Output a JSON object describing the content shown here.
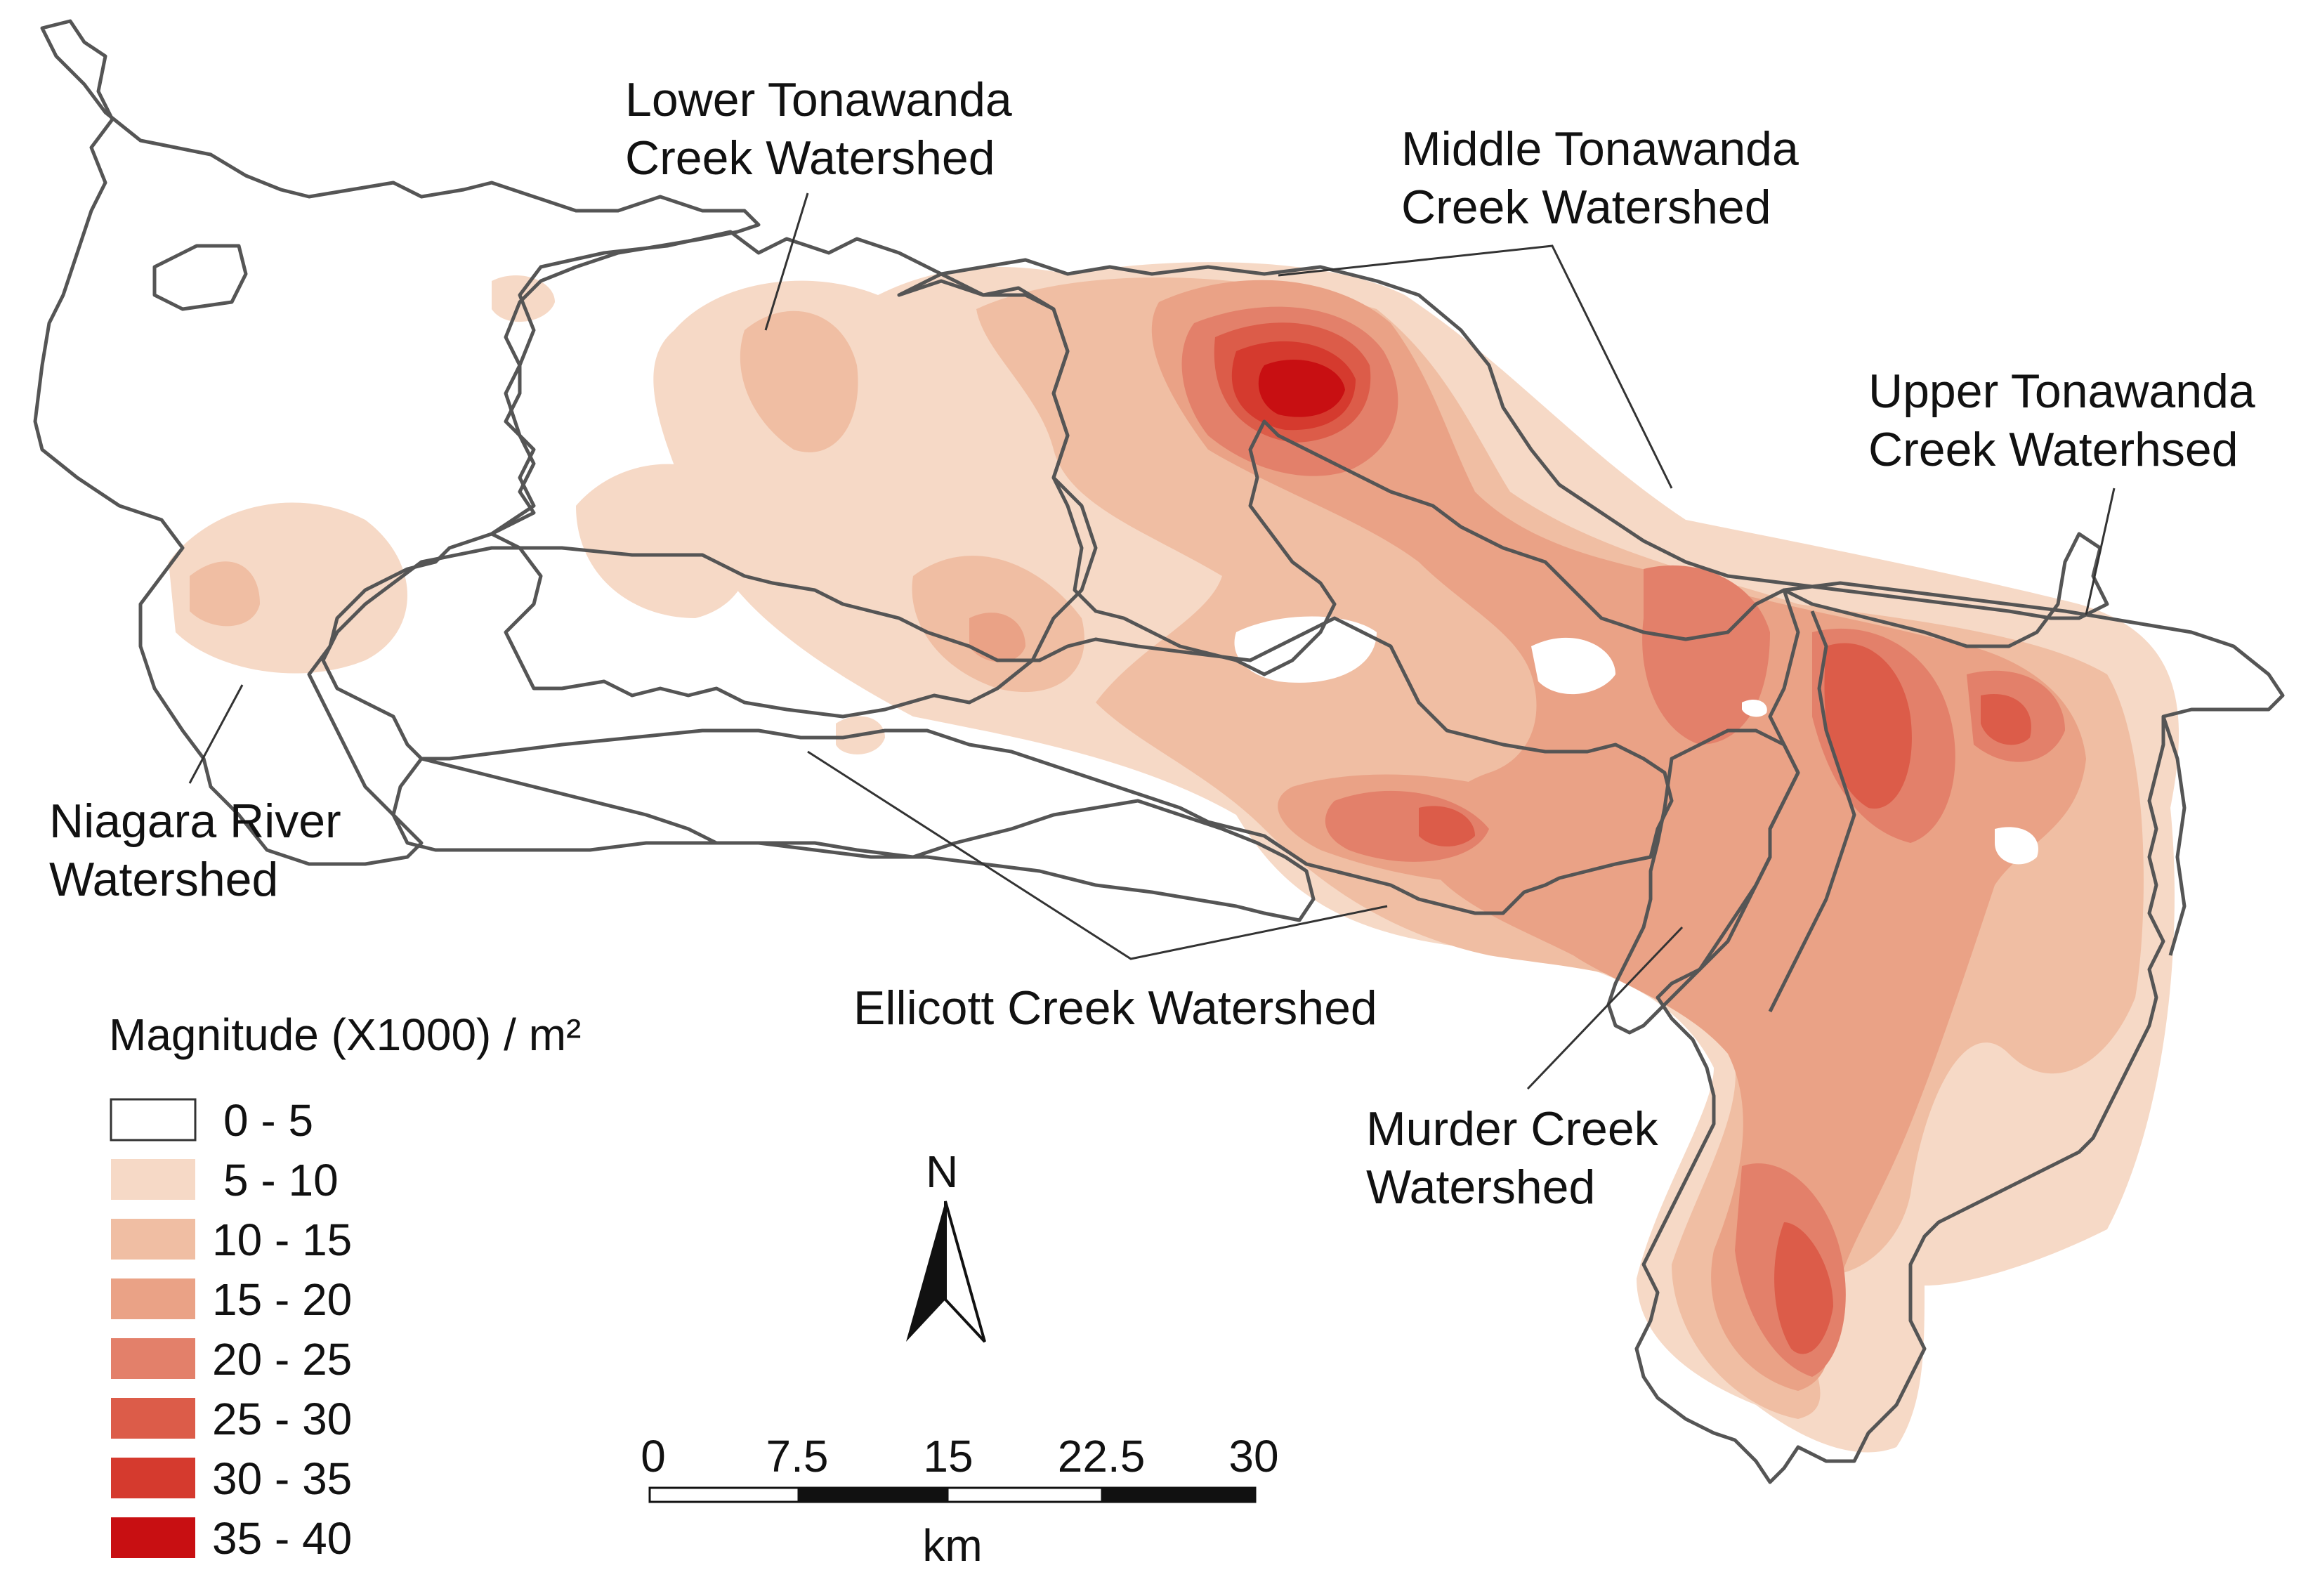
{
  "watersheds": [
    {
      "id": "lower-tonawanda",
      "line1": "Lower Tonawanda",
      "line2": "Creek Watershed"
    },
    {
      "id": "middle-tonawanda",
      "line1": "Middle Tonawanda",
      "line2": "Creek Watershed"
    },
    {
      "id": "upper-tonawanda",
      "line1": "Upper Tonawanda",
      "line2": "Creek Waterhsed"
    },
    {
      "id": "niagara-river",
      "line1": "Niagara River",
      "line2": "Watershed"
    },
    {
      "id": "ellicott-creek",
      "line1": "Ellicott Creek Watershed",
      "line2": ""
    },
    {
      "id": "murder-creek",
      "line1": "Murder Creek",
      "line2": "Watershed"
    }
  ],
  "legend": {
    "title": "Magnitude (X1000) / m²",
    "classes": [
      {
        "label": "0 - 5",
        "color": "#ffffff"
      },
      {
        "label": "5 - 10",
        "color": "#f6d9c6"
      },
      {
        "label": "10 - 15",
        "color": "#f0bea3"
      },
      {
        "label": "15 - 20",
        "color": "#eaa286"
      },
      {
        "label": "20 - 25",
        "color": "#e3806a"
      },
      {
        "label": "25 - 30",
        "color": "#dc5c49"
      },
      {
        "label": "30 - 35",
        "color": "#d53a2e"
      },
      {
        "label": "35 - 40",
        "color": "#c80f12"
      }
    ]
  },
  "north_arrow": {
    "label": "N"
  },
  "scale_bar": {
    "ticks": [
      "0",
      "7.5",
      "15",
      "22.5",
      "30"
    ],
    "unit": "km"
  },
  "colors": {
    "boundary": "#555555",
    "text": "#111111"
  }
}
